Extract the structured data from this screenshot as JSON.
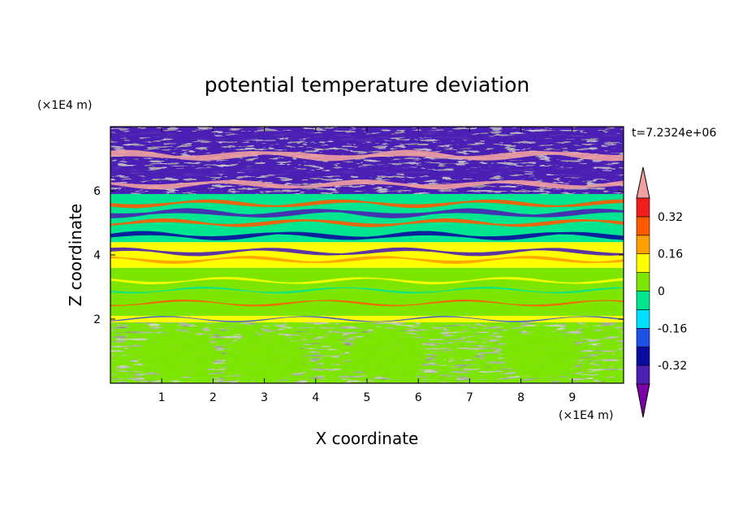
{
  "chart_data": {
    "type": "heatmap",
    "title": "potential temperature deviation",
    "xlabel": "X coordinate",
    "ylabel": "Z coordinate",
    "x_unit": "(×1E4 m)",
    "y_unit": "(×1E4 m)",
    "time_label": "t=7.2324e+06",
    "xlim": [
      0,
      10
    ],
    "ylim": [
      0,
      8
    ],
    "x_ticks": [
      "1",
      "2",
      "3",
      "4",
      "5",
      "6",
      "7",
      "8",
      "9"
    ],
    "y_ticks": [
      "2",
      "4",
      "6"
    ],
    "x_tick_values": [
      1,
      2,
      3,
      4,
      5,
      6,
      7,
      8,
      9
    ],
    "y_tick_values": [
      2,
      4,
      6
    ],
    "colorbar": {
      "levels": [
        -0.4,
        -0.32,
        -0.24,
        -0.16,
        -0.08,
        0,
        0.08,
        0.16,
        0.24,
        0.32,
        0.4
      ],
      "colors": [
        "#7b00a8",
        "#4b1fb4",
        "#0a0aa0",
        "#1e50e6",
        "#00e0ff",
        "#00e690",
        "#7ce600",
        "#ffff00",
        "#ffa000",
        "#ff5a00",
        "#f01e1e",
        "#f0a0a0"
      ],
      "labels": [
        "0.32",
        "0.16",
        "0",
        "-0.16",
        "-0.32"
      ],
      "label_values": [
        0.32,
        0.16,
        0,
        -0.16,
        -0.32
      ],
      "extends": "both"
    },
    "bands": [
      {
        "z": [
          0.0,
          1.9
        ],
        "value": 0.02,
        "secondary_value": 0.05,
        "pattern": "convective cells"
      },
      {
        "z": [
          1.9,
          2.1
        ],
        "value": 0.1,
        "pattern": "thin boundary layer"
      },
      {
        "z": [
          2.1,
          3.6
        ],
        "value": 0.05,
        "pattern": "stratified"
      },
      {
        "z": [
          3.6,
          4.4
        ],
        "value": 0.13,
        "pattern": "yellow band with purple streaks"
      },
      {
        "z": [
          4.4,
          5.9
        ],
        "value": -0.05,
        "pattern": "turbulent mixed"
      },
      {
        "z": [
          5.9,
          8.0
        ],
        "value": -0.4,
        "secondary_value": 0.45,
        "pattern": "purple and pink layers"
      }
    ]
  }
}
